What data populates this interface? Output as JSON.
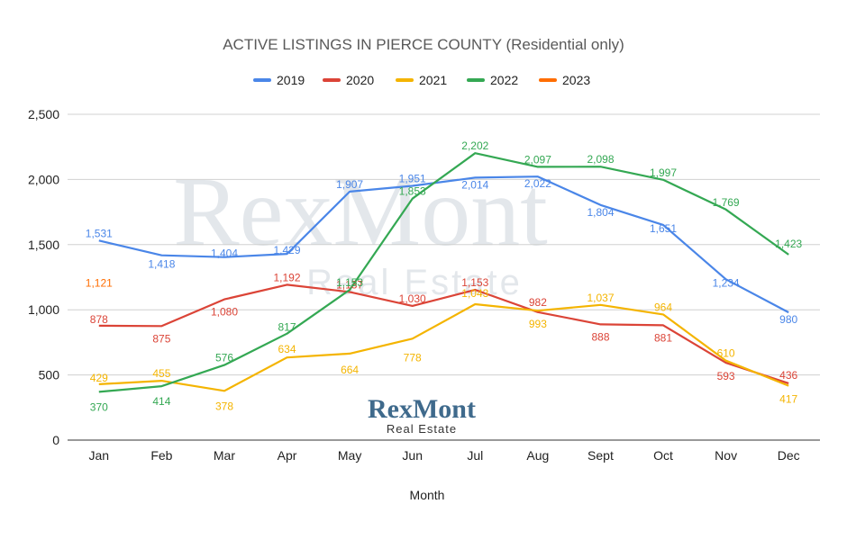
{
  "chart_data": {
    "type": "line",
    "title": "ACTIVE LISTINGS IN PIERCE COUNTY  (Residential only)",
    "xlabel": "Month",
    "ylabel": "",
    "ylim": [
      0,
      2500
    ],
    "yticks": [
      "0",
      "500",
      "1,000",
      "1,500",
      "2,000",
      "2,500"
    ],
    "ytick_values": [
      0,
      500,
      1000,
      1500,
      2000,
      2500
    ],
    "grid": true,
    "legend_position": "top",
    "categories": [
      "Jan",
      "Feb",
      "Mar",
      "Apr",
      "May",
      "Jun",
      "Jul",
      "Aug",
      "Sept",
      "Oct",
      "Nov",
      "Dec"
    ],
    "series": [
      {
        "name": "2019",
        "color": "#4a86e8",
        "values": [
          1531,
          1418,
          1404,
          1429,
          1907,
          1951,
          2014,
          2022,
          1804,
          1651,
          1234,
          980
        ],
        "labels": [
          "1,531",
          "1,418",
          "1,404",
          "1,429",
          "1,907",
          "1,951",
          "2,014",
          "2,022",
          "1,804",
          "1,651",
          "1,234",
          "980"
        ]
      },
      {
        "name": "2020",
        "color": "#db4437",
        "values": [
          878,
          875,
          1080,
          1192,
          1137,
          1030,
          1153,
          982,
          888,
          881,
          593,
          436
        ],
        "labels": [
          "878",
          "875",
          "1,080",
          "1,192",
          "1,137",
          "1,030",
          "1,153",
          "982",
          "888",
          "881",
          "593",
          "436"
        ]
      },
      {
        "name": "2021",
        "color": "#f4b400",
        "values": [
          429,
          455,
          378,
          634,
          664,
          778,
          1043,
          993,
          1037,
          964,
          610,
          417
        ],
        "labels": [
          "429",
          "455",
          "378",
          "634",
          "664",
          "778",
          "1,043",
          "993",
          "1,037",
          "964",
          "610",
          "417"
        ]
      },
      {
        "name": "2022",
        "color": "#34a853",
        "values": [
          370,
          414,
          576,
          817,
          1153,
          1853,
          2202,
          2097,
          2098,
          1997,
          1769,
          1423
        ],
        "labels": [
          "370",
          "414",
          "576",
          "817",
          "1,153",
          "1,853",
          "2,202",
          "2,097",
          "2,098",
          "1,997",
          "1,769",
          "1,423"
        ]
      },
      {
        "name": "2023",
        "color": "#ff6d01",
        "values": [
          1121,
          null,
          null,
          null,
          null,
          null,
          null,
          null,
          null,
          null,
          null,
          null
        ],
        "labels": [
          "1,121",
          "",
          "",
          "",
          "",
          "",
          "",
          "",
          "",
          "",
          "",
          ""
        ]
      }
    ]
  },
  "watermark": {
    "main": "RexMont",
    "sub": "Real Estate"
  },
  "logo": {
    "main": "RexMont",
    "sub": "Real Estate"
  }
}
